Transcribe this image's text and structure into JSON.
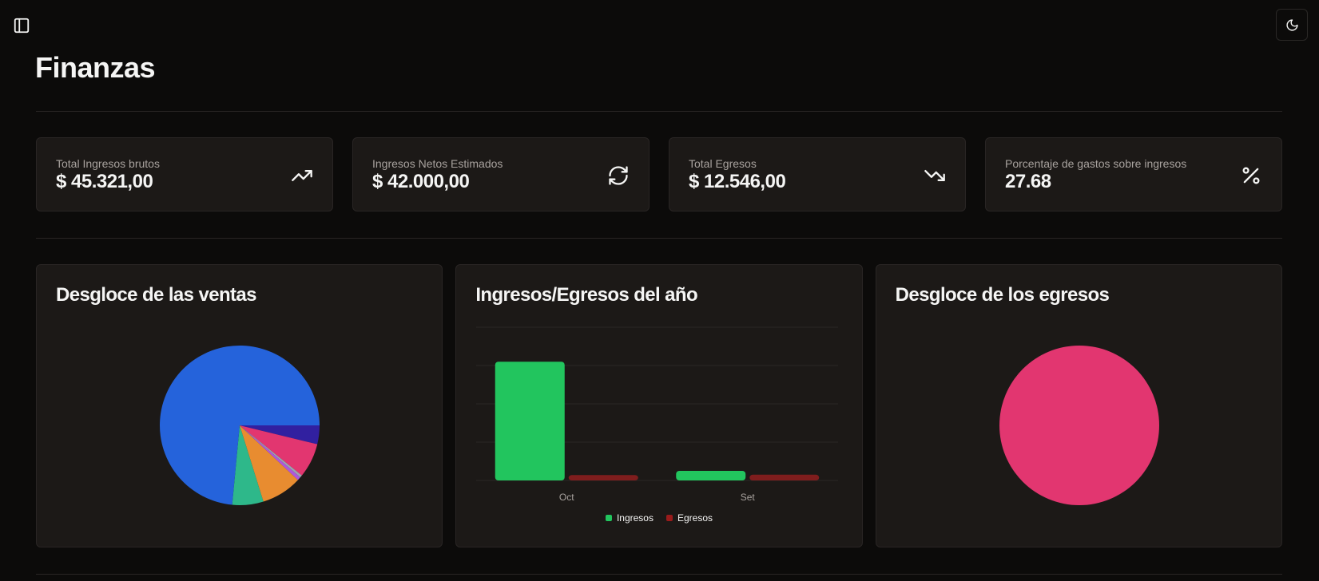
{
  "header": {
    "sidebar_toggle_icon": "panel-left-icon",
    "theme_toggle_icon": "moon-icon",
    "title": "Finanzas"
  },
  "stats": [
    {
      "label": "Total Ingresos brutos",
      "value": "$ 45.321,00",
      "icon": "trending-up-icon"
    },
    {
      "label": "Ingresos Netos Estimados",
      "value": "$ 42.000,00",
      "icon": "refresh-icon"
    },
    {
      "label": "Total Egresos",
      "value": "$ 12.546,00",
      "icon": "trending-down-icon"
    },
    {
      "label": "Porcentaje de gastos sobre ingresos",
      "value": "27.68",
      "icon": "percent-icon"
    }
  ],
  "charts": {
    "sales": {
      "title": "Desgloce de las ventas"
    },
    "yearly": {
      "title": "Ingresos/Egresos del año"
    },
    "expenses": {
      "title": "Desgloce de los egresos"
    }
  },
  "chart_data": [
    {
      "type": "pie",
      "title": "Desgloce de las ventas",
      "slices": [
        {
          "value": 73.5,
          "color": "#2563db"
        },
        {
          "value": 6.3,
          "color": "#2eb88a"
        },
        {
          "value": 8.2,
          "color": "#e88c30"
        },
        {
          "value": 0.7,
          "color": "#af57db"
        },
        {
          "value": 0.5,
          "color": "#9ca3af"
        },
        {
          "value": 7.0,
          "color": "#e23670"
        },
        {
          "value": 3.8,
          "color": "#3120a0"
        }
      ]
    },
    {
      "type": "bar",
      "title": "Ingresos/Egresos del año",
      "categories": [
        "Oct",
        "Set"
      ],
      "series": [
        {
          "name": "Ingresos",
          "values": [
            31000,
            2500
          ],
          "color": "#22c55e"
        },
        {
          "name": "Egresos",
          "values": [
            1400,
            1500
          ],
          "color": "#7f1d1d"
        }
      ],
      "ylim": [
        0,
        40000
      ],
      "grid": true,
      "legend": "bottom"
    },
    {
      "type": "pie",
      "title": "Desgloce de los egresos",
      "slices": [
        {
          "value": 100,
          "color": "#e23670"
        }
      ]
    }
  ]
}
